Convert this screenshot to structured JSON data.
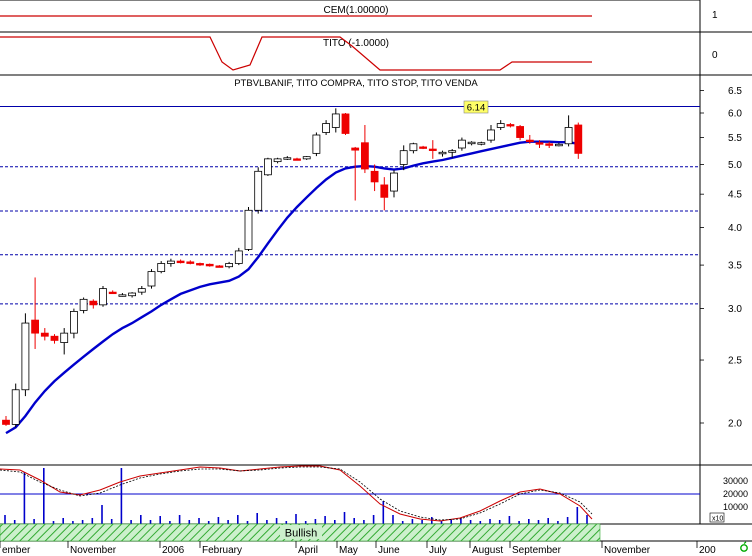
{
  "colors": {
    "background": "#ffffff",
    "frame": "#000000",
    "indicator_line": "#cc0000",
    "moving_average": "#0000cc",
    "up_candle": "#ffffff",
    "down_candle": "#ee0000",
    "dotted_level": "#0000aa",
    "highlight_label_bg": "#ffff66",
    "volume_bar": "#0000cc",
    "band_hatch": "#33aa33",
    "status_icon": "#00aa00"
  },
  "panels": {
    "cem": {
      "label": "CEM(1.00000)",
      "ticks": [
        "1"
      ]
    },
    "tito": {
      "label": "TITO (-1.0000)",
      "ticks": [
        "0"
      ]
    },
    "price": {
      "label": "PTBVLBANIF, TITO COMPRA, TITO STOP, TITO VENDA",
      "ticks": [
        "6.5",
        "6.0",
        "5.5",
        "5.0",
        "4.5",
        "4.0",
        "3.5",
        "3.0",
        "2.5",
        "2.0"
      ],
      "highlight_value": "6.14"
    },
    "volume": {
      "ticks": [
        "30000",
        "20000",
        "10000"
      ],
      "multiplier": "x10",
      "band_label": "Bullish"
    }
  },
  "x_axis": {
    "labels": [
      "ember",
      "November",
      "2006",
      "February",
      "April",
      "May",
      "June",
      "July",
      "August",
      "September",
      "November",
      "200"
    ]
  },
  "status_icon": "cycle-icon",
  "chart_data": {
    "type": "candlestick",
    "title": "PTBVLBANIF, TITO COMPRA, TITO STOP, TITO VENDA",
    "y_scale": "log",
    "ylim": [
      1.9,
      6.6
    ],
    "horizontal_levels": [
      6.14,
      4.96,
      4.24,
      3.63,
      3.05
    ],
    "series": [
      {
        "name": "PTBVLBANIF",
        "ohlc": [
          [
            2.02,
            2.05,
            1.98,
            1.99
          ],
          [
            1.99,
            2.3,
            1.97,
            2.25
          ],
          [
            2.25,
            2.95,
            2.2,
            2.85
          ],
          [
            2.88,
            3.35,
            2.6,
            2.75
          ],
          [
            2.75,
            2.8,
            2.68,
            2.72
          ],
          [
            2.72,
            2.74,
            2.65,
            2.68
          ],
          [
            2.66,
            2.8,
            2.55,
            2.75
          ],
          [
            2.75,
            3.0,
            2.7,
            2.97
          ],
          [
            2.98,
            3.12,
            2.95,
            3.1
          ],
          [
            3.08,
            3.1,
            3.0,
            3.04
          ],
          [
            3.04,
            3.25,
            3.02,
            3.22
          ],
          [
            3.18,
            3.2,
            3.16,
            3.17
          ],
          [
            3.15,
            3.17,
            3.13,
            3.15
          ],
          [
            3.14,
            3.18,
            3.12,
            3.17
          ],
          [
            3.18,
            3.25,
            3.15,
            3.22
          ],
          [
            3.25,
            3.45,
            3.22,
            3.42
          ],
          [
            3.42,
            3.55,
            3.4,
            3.52
          ],
          [
            3.52,
            3.58,
            3.48,
            3.55
          ],
          [
            3.55,
            3.57,
            3.52,
            3.53
          ],
          [
            3.54,
            3.56,
            3.51,
            3.52
          ],
          [
            3.52,
            3.53,
            3.49,
            3.51
          ],
          [
            3.51,
            3.52,
            3.48,
            3.49
          ],
          [
            3.49,
            3.5,
            3.47,
            3.48
          ],
          [
            3.48,
            3.54,
            3.46,
            3.52
          ],
          [
            3.52,
            3.72,
            3.5,
            3.68
          ],
          [
            3.7,
            4.3,
            3.68,
            4.25
          ],
          [
            4.25,
            4.95,
            4.2,
            4.88
          ],
          [
            4.82,
            5.12,
            4.8,
            5.1
          ],
          [
            5.05,
            5.12,
            5.02,
            5.1
          ],
          [
            5.1,
            5.15,
            5.08,
            5.12
          ],
          [
            5.1,
            5.12,
            5.07,
            5.08
          ],
          [
            5.1,
            5.15,
            5.08,
            5.14
          ],
          [
            5.2,
            5.6,
            5.15,
            5.55
          ],
          [
            5.6,
            5.85,
            5.55,
            5.78
          ],
          [
            5.7,
            6.1,
            5.6,
            5.98
          ],
          [
            5.98,
            6.0,
            5.55,
            5.58
          ],
          [
            5.3,
            5.32,
            4.4,
            5.26
          ],
          [
            5.4,
            5.75,
            4.85,
            4.92
          ],
          [
            4.88,
            5.0,
            4.55,
            4.7
          ],
          [
            4.65,
            4.78,
            4.25,
            4.45
          ],
          [
            4.55,
            4.9,
            4.45,
            4.85
          ],
          [
            5.0,
            5.35,
            4.9,
            5.25
          ],
          [
            5.25,
            5.4,
            5.2,
            5.38
          ],
          [
            5.32,
            5.34,
            5.28,
            5.31
          ],
          [
            5.28,
            5.45,
            5.1,
            5.27
          ],
          [
            5.2,
            5.25,
            5.14,
            5.22
          ],
          [
            5.22,
            5.28,
            5.12,
            5.25
          ],
          [
            5.3,
            5.5,
            5.25,
            5.45
          ],
          [
            5.4,
            5.43,
            5.35,
            5.41
          ],
          [
            5.38,
            5.42,
            5.35,
            5.4
          ],
          [
            5.45,
            5.75,
            5.4,
            5.65
          ],
          [
            5.7,
            5.85,
            5.65,
            5.78
          ],
          [
            5.76,
            5.79,
            5.7,
            5.75
          ],
          [
            5.72,
            5.75,
            5.45,
            5.5
          ],
          [
            5.45,
            5.55,
            5.38,
            5.42
          ],
          [
            5.4,
            5.45,
            5.3,
            5.38
          ],
          [
            5.38,
            5.42,
            5.3,
            5.35
          ],
          [
            5.36,
            5.4,
            5.33,
            5.37
          ],
          [
            5.38,
            5.95,
            5.33,
            5.7
          ],
          [
            5.75,
            5.8,
            5.1,
            5.2
          ]
        ]
      },
      {
        "name": "MA",
        "values": [
          1.93,
          1.97,
          2.05,
          2.15,
          2.24,
          2.32,
          2.39,
          2.46,
          2.53,
          2.6,
          2.67,
          2.74,
          2.8,
          2.85,
          2.91,
          2.97,
          3.04,
          3.1,
          3.16,
          3.2,
          3.24,
          3.27,
          3.29,
          3.31,
          3.36,
          3.45,
          3.6,
          3.78,
          3.96,
          4.14,
          4.3,
          4.45,
          4.6,
          4.74,
          4.86,
          4.93,
          4.96,
          4.97,
          4.96,
          4.93,
          4.91,
          4.93,
          4.98,
          5.02,
          5.05,
          5.08,
          5.12,
          5.16,
          5.2,
          5.24,
          5.28,
          5.32,
          5.36,
          5.4,
          5.42,
          5.42,
          5.42,
          5.41,
          5.41,
          5.38
        ]
      }
    ]
  }
}
